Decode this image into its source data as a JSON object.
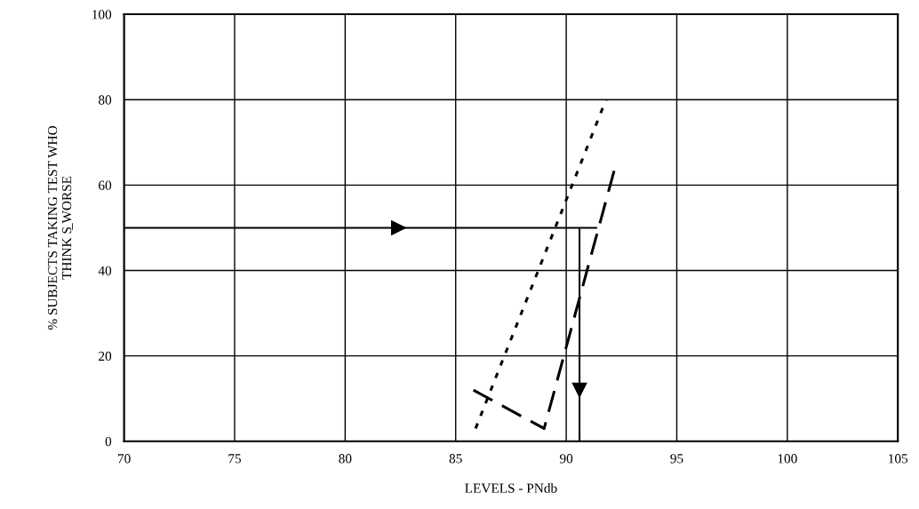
{
  "chart_data": {
    "type": "line",
    "xlabel": "LEVELS - PNdb",
    "ylabel": "% SUBJECTS TAKING TEST WHO\nTHINK S̲ WORSE",
    "xlim": [
      70,
      105
    ],
    "xticks": [
      70,
      75,
      80,
      85,
      90,
      95,
      100,
      105
    ],
    "ylim": [
      0,
      100
    ],
    "yticks": [
      0,
      20,
      40,
      60,
      80,
      100
    ],
    "grid": true,
    "legend": false,
    "series": [
      {
        "color": "#000000",
        "line_style": "dotted",
        "x": [
          85.9,
          91.8
        ],
        "values": [
          3,
          80
        ]
      },
      {
        "color": "#000000",
        "line_style": "dashed",
        "x": [
          85.8,
          89.0,
          92.2
        ],
        "values": [
          12,
          3,
          64
        ]
      },
      {
        "color": "#000000",
        "line_style": "solid",
        "x": [
          70,
          91.4
        ],
        "values": [
          50,
          50
        ]
      },
      {
        "color": "#000000",
        "line_style": "solid",
        "x": [
          90.6,
          90.6
        ],
        "values": [
          50,
          0
        ]
      }
    ]
  }
}
